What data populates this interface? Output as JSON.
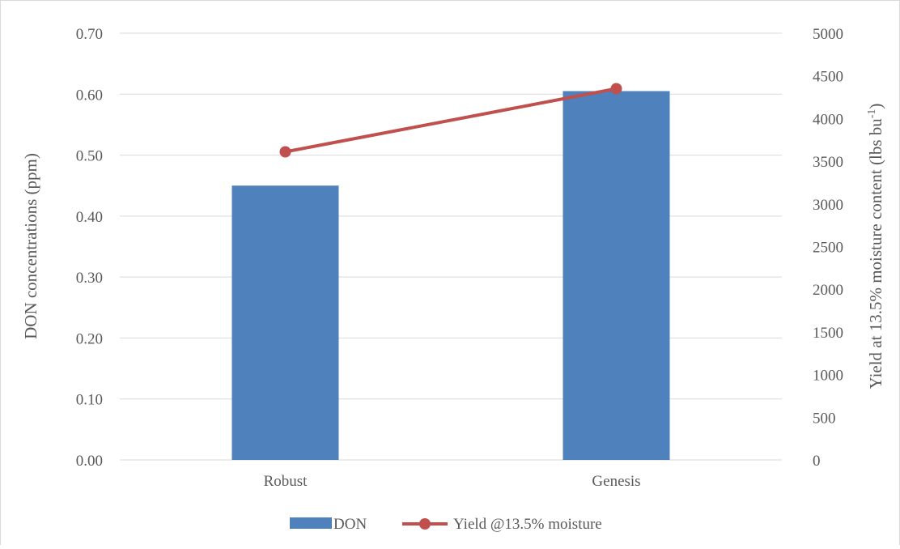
{
  "chart_data": {
    "type": "bar",
    "categories": [
      "Robust",
      "Genesis"
    ],
    "series": [
      {
        "name": "DON",
        "type": "bar",
        "axis": "left",
        "values": [
          0.45,
          0.605
        ],
        "color": "#4f81bd"
      },
      {
        "name": "Yield @13.5% moisture",
        "type": "line",
        "axis": "right",
        "values": [
          3610,
          4350
        ],
        "color": "#c0504d"
      }
    ],
    "ylabel": "DON concentrations (ppm)",
    "y2label_main": "Yield at 13.5% moisture content (lbs bu",
    "y2label_sup": "-1",
    "y2label_end": ")",
    "ylim": [
      0,
      0.7
    ],
    "y2lim": [
      0,
      5000
    ],
    "yticks": [
      "0.00",
      "0.10",
      "0.20",
      "0.30",
      "0.40",
      "0.50",
      "0.60",
      "0.70"
    ],
    "y2ticks": [
      "0",
      "500",
      "1000",
      "1500",
      "2000",
      "2500",
      "3000",
      "3500",
      "4000",
      "4500",
      "5000"
    ],
    "grid": true,
    "legend_position": "bottom"
  }
}
